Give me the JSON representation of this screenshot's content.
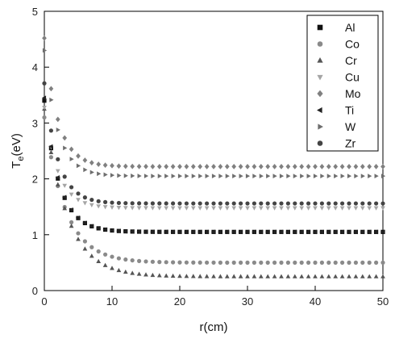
{
  "chart_data": {
    "type": "scatter",
    "title": "",
    "xlabel": "r(cm)",
    "ylabel": "T",
    "ylabel_sub": "e",
    "ylabel_unit": "(eV)",
    "xlim": [
      0,
      50
    ],
    "ylim": [
      0,
      5
    ],
    "xticks": [
      0,
      10,
      20,
      30,
      40,
      50
    ],
    "yticks": [
      0,
      1,
      2,
      3,
      4,
      5
    ],
    "grid": false,
    "legend_position": "top-right",
    "series": [
      {
        "name": "Al",
        "marker": "square",
        "color": "#111111",
        "model": {
          "a": 1.05,
          "b": 2.35,
          "k": 0.45
        }
      },
      {
        "name": "Co",
        "marker": "circle",
        "color": "#8a8a8a",
        "model": {
          "a": 0.5,
          "b": 2.6,
          "k": 0.32
        }
      },
      {
        "name": "Cr",
        "marker": "triangle-up",
        "color": "#555555",
        "model": {
          "a": 0.25,
          "b": 3.0,
          "k": 0.3
        }
      },
      {
        "name": "Cu",
        "marker": "triangle-down",
        "color": "#a5a5a5",
        "model": {
          "a": 1.48,
          "b": 1.8,
          "k": 0.5
        }
      },
      {
        "name": "Mo",
        "marker": "diamond",
        "color": "#808080",
        "model": {
          "a": 2.22,
          "b": 2.3,
          "k": 0.5
        }
      },
      {
        "name": "Ti",
        "marker": "triangle-left",
        "color": "#222222",
        "model": {
          "a": 1.05,
          "b": 2.4,
          "k": 0.45
        }
      },
      {
        "name": "W",
        "marker": "triangle-right",
        "color": "#6e6e6e",
        "model": {
          "a": 2.05,
          "b": 2.25,
          "k": 0.5
        }
      },
      {
        "name": "Zr",
        "marker": "circle",
        "color": "#444444",
        "model": {
          "a": 1.56,
          "b": 2.15,
          "k": 0.5
        }
      }
    ]
  }
}
